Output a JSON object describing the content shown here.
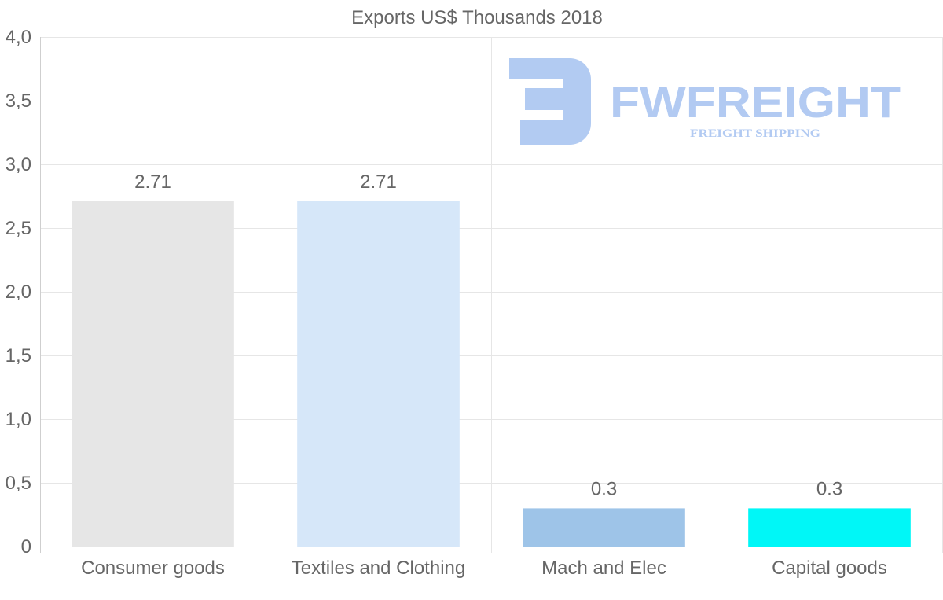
{
  "chart_data": {
    "type": "bar",
    "title": "Exports US$ Thousands 2018",
    "categories": [
      "Consumer goods",
      "Textiles and Clothing",
      "Mach and Elec",
      "Capital goods"
    ],
    "values": [
      2.71,
      2.71,
      0.3,
      0.3
    ],
    "value_labels": [
      "2.71",
      "2.71",
      "0.3",
      "0.3"
    ],
    "bar_colors": [
      "#e6e6e6",
      "#d6e7f9",
      "#9ec4e8",
      "#00f7f7"
    ],
    "ylim": [
      0,
      4
    ],
    "y_ticks": [
      {
        "value": 0,
        "label": "0"
      },
      {
        "value": 0.5,
        "label": "0,5"
      },
      {
        "value": 1,
        "label": "1,0"
      },
      {
        "value": 1.5,
        "label": "1,5"
      },
      {
        "value": 2,
        "label": "2,0"
      },
      {
        "value": 2.5,
        "label": "2,5"
      },
      {
        "value": 3,
        "label": "3,0"
      },
      {
        "value": 3.5,
        "label": "3,5"
      },
      {
        "value": 4,
        "label": "4,0"
      }
    ],
    "xlabel": "",
    "ylabel": "",
    "grid": true
  },
  "watermark": {
    "name": "FWFREIGHT",
    "tagline": "FREIGHT SHIPPING",
    "color": "#7fa8ea"
  }
}
